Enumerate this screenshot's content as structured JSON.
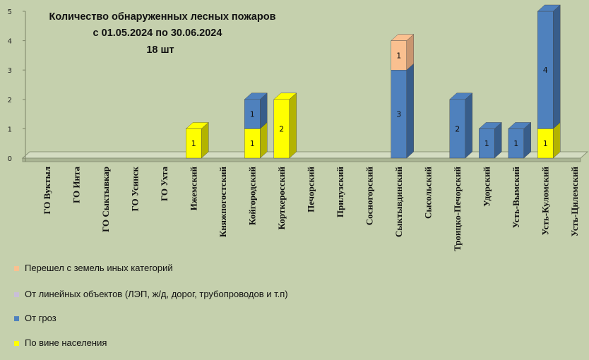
{
  "chart_data": {
    "type": "bar",
    "stacked": true,
    "title_lines": [
      "Количество обнаруженных лесных пожаров",
      "с 01.05.2024  по  30.06.2024",
      "18 шт"
    ],
    "ylim": [
      0,
      5
    ],
    "yticks": [
      0,
      1,
      2,
      3,
      4,
      5
    ],
    "legend_position": "bottom-left",
    "categories": [
      "ГО Вуктыл",
      "ГО Инта",
      "ГО Сыктывкар",
      "ГО Усинск",
      "ГО Ухта",
      "Ижемский",
      "Княжпогостский",
      "Койгородский",
      "Корткеросский",
      "Печорский",
      "Прилузский",
      "Сосногорский",
      "Сыктывдинский",
      "Сысольский",
      "Троицко-Печорский",
      "Удорский",
      "Усть-Вымский",
      "Усть-Куломский",
      "Усть-Цилемский"
    ],
    "series": [
      {
        "name": "По вине населения",
        "color": "#ffff00",
        "side": "#b3b300",
        "values": [
          0,
          0,
          0,
          0,
          0,
          1,
          0,
          1,
          2,
          0,
          0,
          0,
          0,
          0,
          0,
          0,
          0,
          1,
          0
        ]
      },
      {
        "name": "От гроз",
        "color": "#4f81bd",
        "side": "#385d8a",
        "values": [
          0,
          0,
          0,
          0,
          0,
          0,
          0,
          1,
          0,
          0,
          0,
          0,
          3,
          0,
          2,
          1,
          1,
          4,
          0
        ]
      },
      {
        "name": "От линейных объектов (ЛЭП, ж/д, дорог, трубопроводов  и т.п)",
        "color": "#c9bfd8",
        "side": "#9a90a8",
        "values": [
          0,
          0,
          0,
          0,
          0,
          0,
          0,
          0,
          0,
          0,
          0,
          0,
          0,
          0,
          0,
          0,
          0,
          0,
          0
        ]
      },
      {
        "name": "Перешел с земель иных категорий",
        "color": "#fac090",
        "side": "#c99670",
        "values": [
          0,
          0,
          0,
          0,
          0,
          0,
          0,
          0,
          0,
          0,
          0,
          0,
          1,
          0,
          0,
          0,
          0,
          0,
          0
        ]
      }
    ],
    "legend_order": [
      3,
      2,
      1,
      0
    ]
  }
}
